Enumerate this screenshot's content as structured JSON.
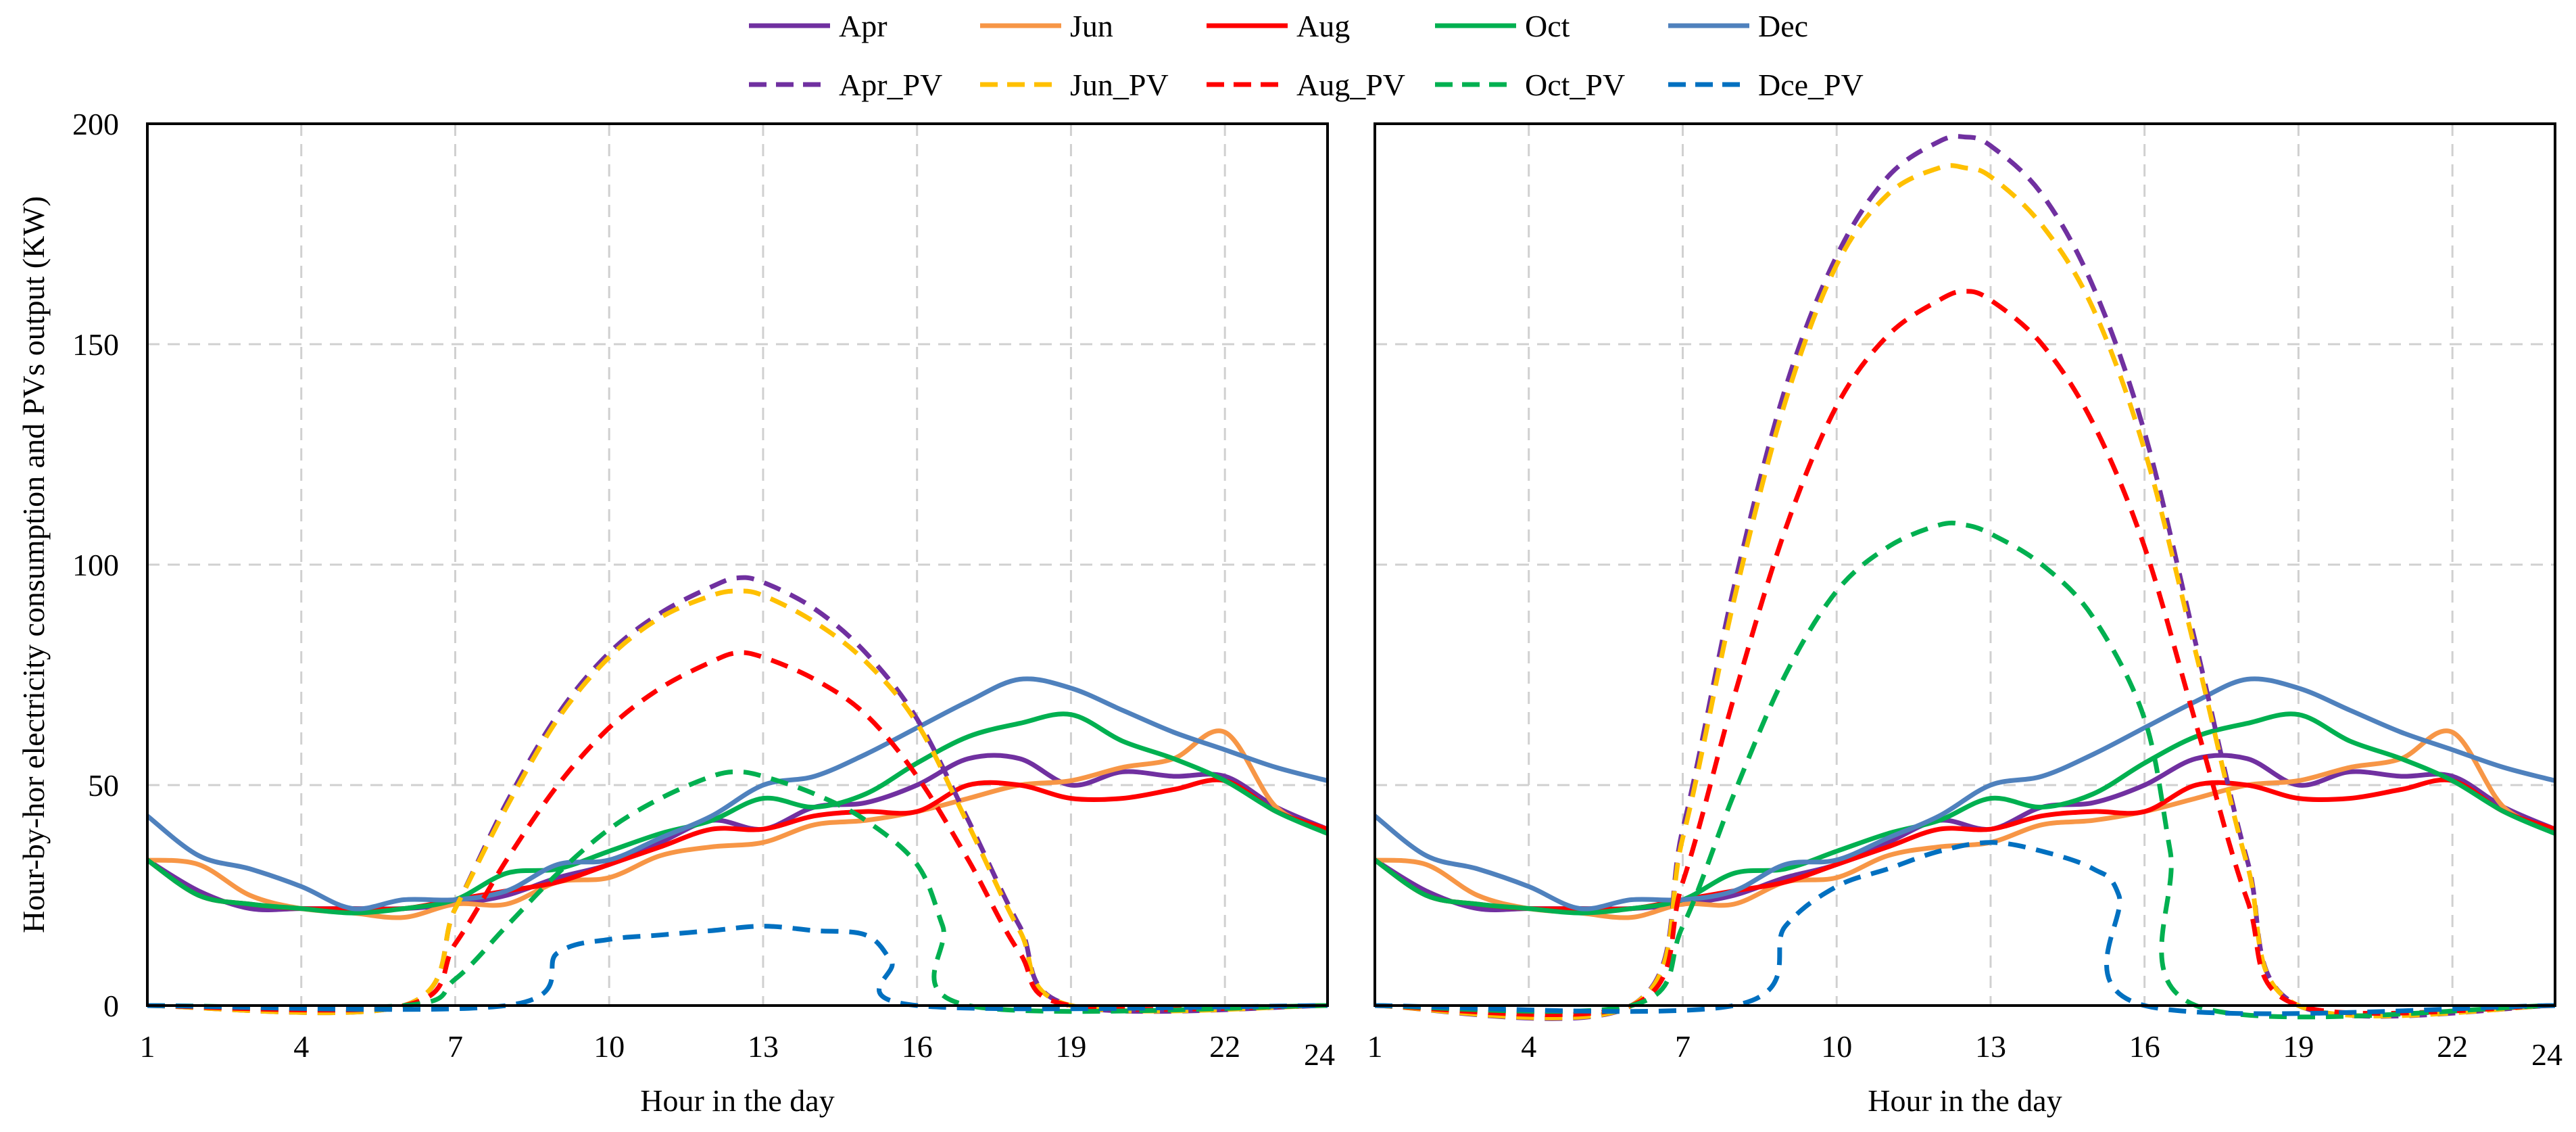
{
  "chart_data": {
    "type": "line",
    "ylabel": "Hour-by-hor electricity consumption and PVs output (KW)",
    "xlabel": "Hour in the day",
    "xlim": [
      1,
      24
    ],
    "ylim": [
      0,
      200
    ],
    "xticks": [
      1,
      4,
      7,
      10,
      13,
      16,
      19,
      22,
      24
    ],
    "yticks": [
      0,
      50,
      100,
      150,
      200
    ],
    "grid": true,
    "legend_position": "top-center",
    "colors": {
      "Apr": "#7030a0",
      "Jun": "#f79646",
      "Aug": "#ff0000",
      "Oct": "#00b050",
      "Dec": "#4f81bd",
      "Apr_PV": "#7030a0",
      "Jun_PV": "#ffc000",
      "Aug_PV": "#ff0000",
      "Oct_PV": "#00b050",
      "Dce_PV": "#0070c0"
    },
    "legend": [
      "Apr",
      "Jun",
      "Aug",
      "Oct",
      "Dec",
      "Apr_PV",
      "Jun_PV",
      "Aug_PV",
      "Oct_PV",
      "Dce_PV"
    ],
    "consumption": {
      "hours": [
        1,
        2,
        3,
        4,
        5,
        6,
        7,
        8,
        9,
        10,
        11,
        12,
        13,
        14,
        15,
        16,
        17,
        18,
        19,
        20,
        21,
        22,
        23,
        24
      ],
      "series": [
        {
          "name": "Apr",
          "style": "solid",
          "values": [
            33,
            26,
            22,
            22,
            22,
            22,
            23,
            25,
            29,
            32,
            37,
            42,
            40,
            45,
            46,
            50,
            56,
            56,
            50,
            53,
            52,
            52,
            45,
            40
          ]
        },
        {
          "name": "Jun",
          "style": "solid",
          "values": [
            33,
            32,
            25,
            22,
            21,
            20,
            23,
            23,
            28,
            29,
            34,
            36,
            37,
            41,
            42,
            44,
            47,
            50,
            51,
            54,
            56,
            62,
            45,
            40
          ]
        },
        {
          "name": "Aug",
          "style": "solid",
          "values": [
            33,
            25,
            23,
            22,
            22,
            22,
            24,
            26,
            28,
            32,
            36,
            40,
            40,
            43,
            44,
            44,
            50,
            50,
            47,
            47,
            49,
            51,
            44,
            40
          ]
        },
        {
          "name": "Oct",
          "style": "solid",
          "values": [
            33,
            25,
            23,
            22,
            21,
            22,
            24,
            30,
            31,
            35,
            39,
            42,
            47,
            45,
            48,
            55,
            61,
            64,
            66,
            60,
            56,
            51,
            44,
            39
          ]
        },
        {
          "name": "Dec",
          "style": "solid",
          "values": [
            43,
            34,
            31,
            27,
            22,
            24,
            24,
            26,
            32,
            33,
            38,
            43,
            50,
            52,
            57,
            63,
            69,
            74,
            72,
            67,
            62,
            58,
            54,
            51
          ]
        }
      ]
    },
    "panels": [
      {
        "name": "left",
        "pv_series": [
          {
            "name": "Apr_PV",
            "style": "dashed",
            "x": [
              1,
              6,
              7,
              8,
              9,
              10,
              11,
              12,
              12.5,
              13,
              14,
              15,
              16,
              17,
              18,
              19,
              24
            ],
            "values": [
              0,
              0,
              22,
              46,
              66,
              80,
              89,
              95,
              97,
              96,
              90,
              80,
              65,
              42,
              18,
              0,
              0
            ]
          },
          {
            "name": "Jun_PV",
            "style": "dashed",
            "x": [
              1,
              6,
              7,
              8,
              9,
              10,
              11,
              12,
              12.5,
              13,
              14,
              15,
              16,
              17,
              18,
              19,
              24
            ],
            "values": [
              0,
              0,
              22,
              45,
              65,
              79,
              88,
              93,
              94,
              93,
              87,
              78,
              64,
              41,
              17,
              0,
              0
            ]
          },
          {
            "name": "Aug_PV",
            "style": "dashed",
            "x": [
              1,
              6,
              7,
              8,
              9,
              10,
              11,
              12,
              12.5,
              13,
              14,
              15,
              16,
              17,
              18,
              19,
              24
            ],
            "values": [
              0,
              0,
              14,
              33,
              50,
              63,
              72,
              78,
              80,
              79,
              74,
              66,
              52,
              33,
              12,
              0,
              0
            ]
          },
          {
            "name": "Oct_PV",
            "style": "dashed",
            "x": [
              1,
              6,
              7,
              8,
              9,
              10,
              11,
              12,
              12.5,
              13,
              14,
              15,
              16,
              16.5,
              17,
              24
            ],
            "values": [
              0,
              0,
              6,
              18,
              30,
              40,
              47,
              52,
              53,
              52,
              48,
              42,
              32,
              18,
              0,
              0
            ]
          },
          {
            "name": "Dce_PV",
            "style": "dashed",
            "x": [
              1,
              8,
              9,
              10,
              11,
              12,
              13,
              14,
              15,
              15.5,
              16,
              24
            ],
            "values": [
              0,
              0,
              12,
              15,
              16,
              17,
              18,
              17,
              16,
              10,
              0,
              0
            ]
          }
        ]
      },
      {
        "name": "right",
        "pv_series": [
          {
            "name": "Apr_PV",
            "style": "dashed",
            "x": [
              1,
              6,
              7,
              8,
              9,
              10,
              11,
              12,
              12.5,
              13,
              14,
              15,
              16,
              17,
              18,
              19,
              24
            ],
            "values": [
              0,
              0,
              40,
              95,
              140,
              170,
              188,
              196,
              197,
              195,
              184,
              163,
              130,
              82,
              33,
              0,
              0
            ]
          },
          {
            "name": "Jun_PV",
            "style": "dashed",
            "x": [
              1,
              6,
              7,
              8,
              9,
              10,
              11,
              12,
              12.5,
              13,
              14,
              15,
              16,
              17,
              18,
              19,
              24
            ],
            "values": [
              0,
              0,
              38,
              92,
              137,
              168,
              184,
              190,
              190,
              188,
              177,
              158,
              126,
              80,
              32,
              0,
              0
            ]
          },
          {
            "name": "Aug_PV",
            "style": "dashed",
            "x": [
              1,
              6,
              7,
              8,
              9,
              10,
              11,
              12,
              12.5,
              13,
              14,
              15,
              16,
              17,
              18,
              19,
              24
            ],
            "values": [
              0,
              0,
              28,
              70,
              108,
              136,
              152,
              160,
              162,
              160,
              150,
              132,
              104,
              64,
              24,
              0,
              0
            ]
          },
          {
            "name": "Oct_PV",
            "style": "dashed",
            "x": [
              1,
              6,
              7,
              8,
              9,
              10,
              11,
              12,
              12.5,
              13,
              14,
              15,
              16,
              16.5,
              17,
              24
            ],
            "values": [
              0,
              0,
              18,
              48,
              75,
              94,
              104,
              109,
              109,
              107,
              100,
              88,
              65,
              35,
              0,
              0
            ]
          },
          {
            "name": "Dce_PV",
            "style": "dashed",
            "x": [
              1,
              8,
              9,
              10,
              11,
              12,
              13,
              14,
              15,
              15.5,
              16,
              24
            ],
            "values": [
              0,
              0,
              18,
              27,
              31,
              35,
              37,
              35,
              31,
              25,
              0,
              0
            ]
          }
        ]
      }
    ]
  }
}
